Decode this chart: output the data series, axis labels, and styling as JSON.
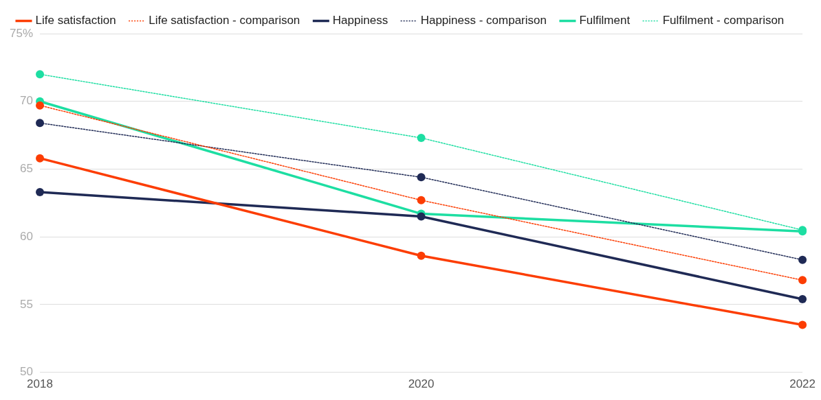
{
  "chart_data": {
    "type": "line",
    "categories": [
      "2018",
      "2020",
      "2022"
    ],
    "series": [
      {
        "name": "Life satisfaction",
        "color": "#fc3d03",
        "line_style": "solid",
        "values": [
          65.8,
          58.6,
          53.5
        ]
      },
      {
        "name": "Life satisfaction - comparison",
        "color": "#fc3d03",
        "line_style": "dotted",
        "values": [
          69.7,
          62.7,
          56.8
        ]
      },
      {
        "name": "Happiness",
        "color": "#1f2a55",
        "line_style": "solid",
        "values": [
          63.3,
          61.5,
          55.4
        ]
      },
      {
        "name": "Happiness - comparison",
        "color": "#1f2a55",
        "line_style": "dotted",
        "values": [
          68.4,
          64.4,
          58.3
        ]
      },
      {
        "name": "Fulfilment",
        "color": "#1ddea2",
        "line_style": "solid",
        "values": [
          70.0,
          61.7,
          60.4
        ]
      },
      {
        "name": "Fulfilment - comparison",
        "color": "#1ddea2",
        "line_style": "dotted",
        "values": [
          72.0,
          67.3,
          60.5
        ]
      }
    ],
    "ylim": [
      50,
      75
    ],
    "yticks": [
      50,
      55,
      60,
      65,
      70,
      {
        "value": 75,
        "label": "75%"
      }
    ],
    "grid": "y",
    "legend": "top left",
    "marker": "circle"
  }
}
